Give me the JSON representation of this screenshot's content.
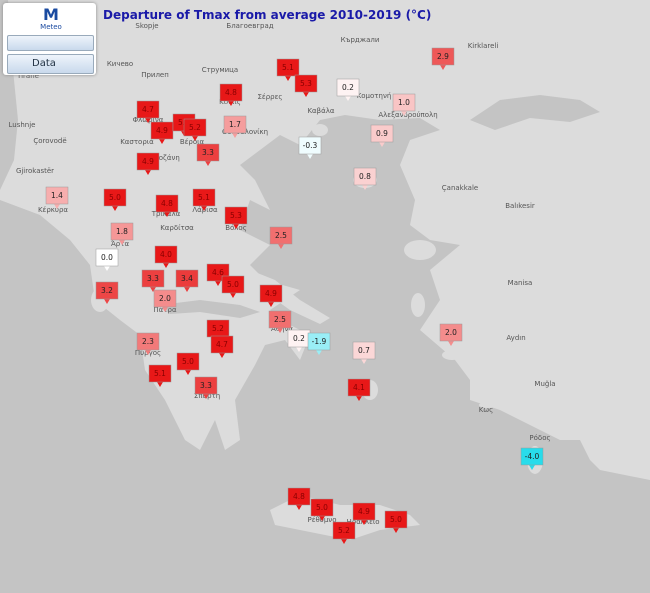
{
  "header": {
    "title": "Departure of Tmax from average 2010-2019 (°C)",
    "logo_text": "Meteo",
    "button": "Data"
  },
  "markers": {
    "values": [
      2.9,
      0.2,
      1.0,
      0.9,
      -0.3,
      0.8,
      1.4,
      1.8,
      2.5,
      0.0,
      3.3,
      3.4,
      4.0,
      3.2,
      2.0,
      2.5,
      0.2,
      -1.9,
      0.7,
      2.0,
      2.3,
      3.3,
      4.1,
      -4.0,
      1.7,
      3.3,
      5.1,
      5.3,
      4.8,
      4.7,
      4.9,
      5.0,
      5.2,
      4.9,
      5.0,
      4.8,
      5.1,
      5.3,
      4.6,
      5.0,
      4.9,
      5.2,
      4.7,
      5.0,
      5.1,
      4.8,
      5.0,
      4.9,
      5.2,
      5.0
    ],
    "value_labels": [
      "2.9",
      "0.2",
      "1.0",
      "0.9",
      "-0.3",
      "0.8",
      "1.4",
      "1.8",
      "2.5",
      "0.0",
      "3.3",
      "3.4",
      "4.0",
      "3.2",
      "2.0",
      "2.5",
      "0.2",
      "-1.9",
      "0.7",
      "2.0",
      "2.3",
      "3.3",
      "4.1",
      "-4.0",
      "1.7",
      "3.3",
      "5.1",
      "5.3",
      "4.8",
      "4.7",
      "4.9",
      "5.0",
      "5.2",
      "4.9",
      "5.0",
      "4.8",
      "5.1",
      "5.3",
      "4.6",
      "5.0",
      "4.9",
      "5.2",
      "4.7",
      "5.0",
      "5.1",
      "4.8",
      "5.0",
      "4.9",
      "5.2",
      "5.0"
    ]
  },
  "places": [
    "Skopje",
    "Tiranë",
    "Lushnje",
    "Çorovodë",
    "Gjirokastër",
    "Kirklareli",
    "Çanakkale",
    "Balıkesir",
    "Manisa",
    "Aydın",
    "Muğla",
    "Ρόδος",
    "Κως",
    "Κέρκυρα",
    "Άρτα",
    "Τρίκαλα",
    "Καρδίτσα",
    "Λάρισα",
    "Βόλος",
    "Αθήνα",
    "Πάτρα",
    "Πύργος",
    "Σπάρτη",
    "Ηράκλειο",
    "Ρέθυμνο",
    "Καστοριά",
    "Κοζάνη",
    "Βέροια",
    "Κιλκίς",
    "Σέρρες",
    "Καβάλα",
    "Κομοτηνή",
    "Αλεξανδρούπολη",
    "Θεσσαλονίκη",
    "Φλώρινα",
    "Благоевград",
    "Кърджали",
    "Струмица",
    "Кичево",
    "Прилеп"
  ]
}
